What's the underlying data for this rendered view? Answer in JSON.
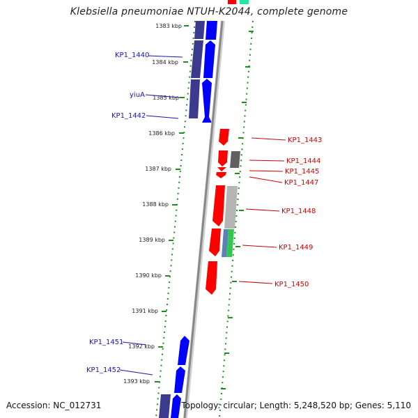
{
  "title": "Klebsiella pneumoniae NTUH-K2044, complete genome",
  "footer": {
    "accession": "Accession: NC_012731",
    "summary": "Topology: circular; Length: 5,248,520 bp; Genes: 5,110"
  },
  "colors": {
    "forward_gene": "#0000ff",
    "reverse_gene": "#ff0000",
    "forward_cds_band": "#3c3a8c",
    "backbone": "#888888",
    "tick": "#1e8c1e",
    "forward_label": "#1414b4",
    "reverse_label": "#c80000",
    "grey_band": "#b4b4b4",
    "dark_band": "#606060",
    "green_band": "#32c850",
    "steel_band": "#5a82b4",
    "teal_band": "#28e6a0"
  },
  "ruler": [
    "1383 kbp",
    "1384 kbp",
    "1385 kbp",
    "1386 kbp",
    "1387 kbp",
    "1388 kbp",
    "1389 kbp",
    "1390 kbp",
    "1391 kbp",
    "1392 kbp",
    "1393 kbp"
  ],
  "labels_forward": [
    "KP1_1440",
    "yiuA",
    "KP1_1442",
    "KP1_1451",
    "KP1_1452"
  ],
  "labels_reverse": [
    "KP1_1443",
    "KP1_1444",
    "KP1_1445",
    "KP1_1447",
    "KP1_1448",
    "KP1_1449",
    "KP1_1450"
  ]
}
